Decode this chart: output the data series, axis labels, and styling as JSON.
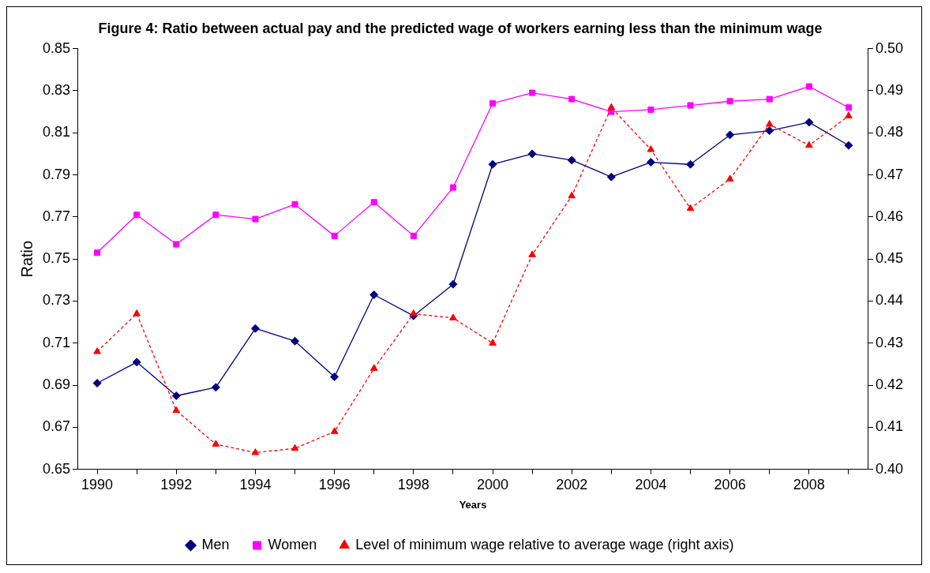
{
  "chart_data": {
    "type": "line",
    "title": "Figure 4: Ratio between actual pay and the predicted wage of workers earning less than the minimum wage",
    "xlabel": "Years",
    "ylabel": "Ratio",
    "categories": [
      "1990",
      null,
      "1992",
      null,
      "1994",
      null,
      "1996",
      null,
      "1998",
      null,
      "2000",
      null,
      "2002",
      null,
      "2004",
      null,
      "2006",
      null,
      "2008",
      null
    ],
    "ylim": [
      0.65,
      0.85
    ],
    "yticks": [
      0.65,
      0.67,
      0.69,
      0.71,
      0.73,
      0.75,
      0.77,
      0.79,
      0.81,
      0.83,
      0.85
    ],
    "y2lim": [
      0.4,
      0.5
    ],
    "y2ticks": [
      {
        "value": 0.4,
        "label": "0.40"
      },
      0.41,
      0.42,
      0.43,
      0.44,
      0.45,
      0.46,
      0.47,
      0.48,
      0.49,
      {
        "value": 0.5,
        "label": "0.50"
      }
    ],
    "grid": false,
    "legend": "bottom",
    "series": [
      {
        "name": "Men",
        "color": "#000080",
        "marker": "diamond",
        "line_style": "solid",
        "values": [
          0.691,
          0.701,
          0.685,
          0.689,
          0.717,
          0.711,
          0.694,
          0.733,
          0.723,
          0.738,
          0.795,
          0.8,
          0.797,
          0.789,
          0.796,
          0.795,
          0.809,
          0.811,
          0.815,
          0.804
        ]
      },
      {
        "name": "Women",
        "color": "#ff00ff",
        "marker": "square",
        "line_style": "solid",
        "values": [
          0.753,
          0.771,
          0.757,
          0.771,
          0.769,
          0.776,
          0.761,
          0.777,
          0.761,
          0.784,
          0.824,
          0.829,
          0.826,
          0.82,
          0.821,
          0.823,
          0.825,
          0.826,
          0.832,
          0.822
        ]
      },
      {
        "name": "Level of minimum wage relative to average wage (right axis)",
        "color": "#ff0000",
        "marker": "triangle",
        "line_style": "dashed",
        "axis": "y2",
        "values": [
          0.428,
          0.437,
          0.414,
          0.406,
          0.404,
          0.405,
          0.409,
          0.424,
          0.437,
          0.436,
          0.43,
          0.451,
          0.465,
          0.486,
          0.476,
          0.462,
          0.469,
          0.482,
          0.477,
          0.484
        ]
      }
    ]
  }
}
